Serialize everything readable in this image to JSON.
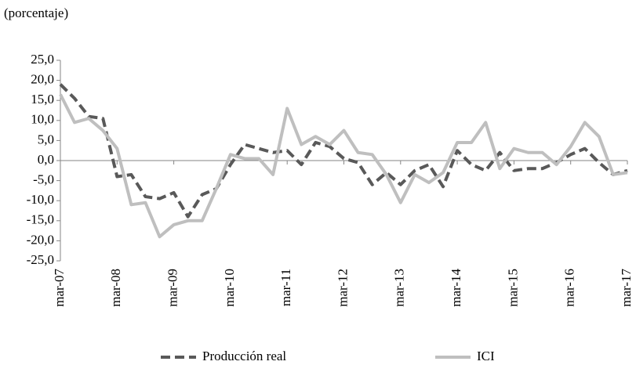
{
  "chart_data": {
    "type": "line",
    "y_label": "(porcentaje)",
    "categories": [
      "mar-07",
      null,
      null,
      null,
      "mar-08",
      null,
      null,
      null,
      "mar-09",
      null,
      null,
      null,
      "mar-10",
      null,
      null,
      null,
      "mar-11",
      null,
      null,
      null,
      "mar-12",
      null,
      null,
      null,
      "mar-13",
      null,
      null,
      null,
      "mar-14",
      null,
      null,
      null,
      "mar-15",
      null,
      null,
      null,
      "mar-16",
      null,
      null,
      null,
      "mar-17"
    ],
    "series": [
      {
        "name": "Producción real",
        "color": "#595959",
        "dash": true,
        "values": [
          19,
          15.5,
          11,
          10.5,
          -4,
          -3.5,
          -9,
          -9.5,
          -8,
          -14,
          -8.5,
          -7,
          -1,
          4,
          3,
          2,
          2.5,
          -1,
          4.5,
          3.5,
          0.5,
          -0.5,
          -6,
          -3,
          -6,
          -2.5,
          -1,
          -6.5,
          2.5,
          -1,
          -2.5,
          2,
          -2.5,
          -2,
          -2,
          -0.5,
          1.5,
          3,
          -0.5,
          -3.5,
          -2.5
        ]
      },
      {
        "name": "ICI",
        "color": "#bfbfbf",
        "dash": false,
        "values": [
          16.5,
          9.5,
          10.5,
          7.5,
          3,
          -11,
          -10.5,
          -19,
          -16,
          -15,
          -15,
          -7,
          1.5,
          0.5,
          0.5,
          -3.5,
          13,
          4,
          6,
          4,
          7.5,
          2,
          1.5,
          -3.5,
          -10.5,
          -3.5,
          -5.5,
          -3,
          4.5,
          4.5,
          9.5,
          -2,
          3,
          2,
          2,
          -1,
          3.5,
          9.5,
          6,
          -3.5,
          -3
        ]
      }
    ],
    "ylim": [
      -25,
      25
    ],
    "yticks": [
      {
        "value": -25,
        "label": "-25,0"
      },
      {
        "value": -20,
        "label": "-20,0"
      },
      {
        "value": -15,
        "label": "-15,0"
      },
      {
        "value": -10,
        "label": "-10,0"
      },
      {
        "value": -5,
        "label": "-5,0"
      },
      {
        "value": 0,
        "label": "0,0"
      },
      {
        "value": 5,
        "label": "5,0"
      },
      {
        "value": 10,
        "label": "10,0"
      },
      {
        "value": 15,
        "label": "15,0"
      },
      {
        "value": 20,
        "label": "20,0"
      },
      {
        "value": 25,
        "label": "25,0"
      }
    ],
    "legend": "bottom"
  }
}
